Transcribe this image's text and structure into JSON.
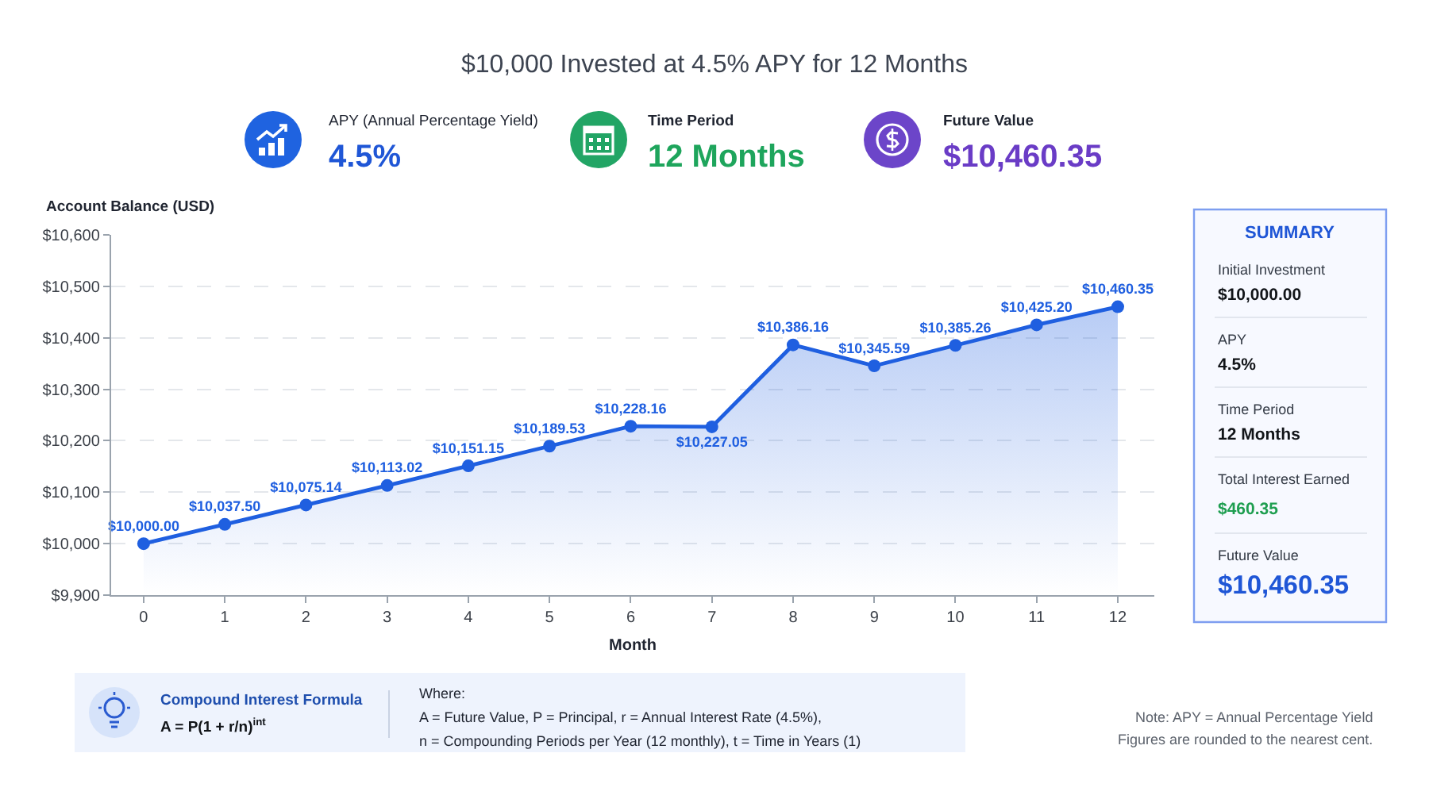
{
  "chart_data": {
    "type": "area",
    "title": "$10,000 Invested at 4.5% APY for 12 Months",
    "xlabel": "Month",
    "ylabel": "Account Balance (USD)",
    "x": [
      0,
      1,
      2,
      3,
      4,
      5,
      6,
      7,
      8,
      9,
      10,
      11,
      12
    ],
    "series": [
      {
        "color": "#1f5fe0",
        "values": [
          10000.0,
          10037.5,
          10075.14,
          10113.02,
          10151.15,
          10189.53,
          10228.16,
          10227.05,
          10386.16,
          10345.59,
          10385.26,
          10425.2,
          10460.35
        ],
        "value_labels": [
          "$10,000.00",
          "$10,037.50",
          "$10,075.14",
          "$10,113.02",
          "$10,151.15",
          "$10,189.53",
          "$10,228.16",
          "$10,227.05",
          "$10,386.16",
          "$10,345.59",
          "$10,385.26",
          "$10,425.20",
          "$10,460.35"
        ]
      }
    ],
    "xlim": [
      -0.4,
      12.45
    ],
    "xticks": [
      0,
      1,
      2,
      3,
      4,
      5,
      6,
      7,
      8,
      9,
      10,
      11,
      12
    ],
    "ylim": [
      9900,
      10600
    ],
    "yticks": [
      {
        "value": 9900,
        "label": "$9,900"
      },
      {
        "value": 10000,
        "label": "$10,000"
      },
      {
        "value": 10100,
        "label": "$10,100"
      },
      {
        "value": 10200,
        "label": "$10,200"
      },
      {
        "value": 10300,
        "label": "$10,300"
      },
      {
        "value": 10400,
        "label": "$10,400"
      },
      {
        "value": 10500,
        "label": "$10,500"
      },
      {
        "value": 10600,
        "label": "$10,600"
      }
    ],
    "grid": "y",
    "marker": "circle",
    "line_style": "solid",
    "annotations": [
      "APY (Annual Percentage Yield)",
      "4.5%",
      "Time Period",
      "12 Months",
      "Future Value",
      "$10,460.35",
      "SUMMARY",
      "Initial Investment",
      "$10,000.00",
      "APY",
      "4.5%",
      "Time Period",
      "12 Months",
      "Total Interest Earned",
      "$460.35",
      "Future Value",
      "$10,460.35",
      "Compound Interest Formula",
      "A = P(1 + r/n)$^{int}$",
      "Where:",
      "A = Future Value, P = Principal, r = Annual Interest Rate (4.5%),",
      "n = Compounding Periods per Year (12 monthly), t = Time in Years (1)",
      "Note: APY = Annual Percentage Yield",
      "Figures are rounded to the nearest cent."
    ]
  }
}
